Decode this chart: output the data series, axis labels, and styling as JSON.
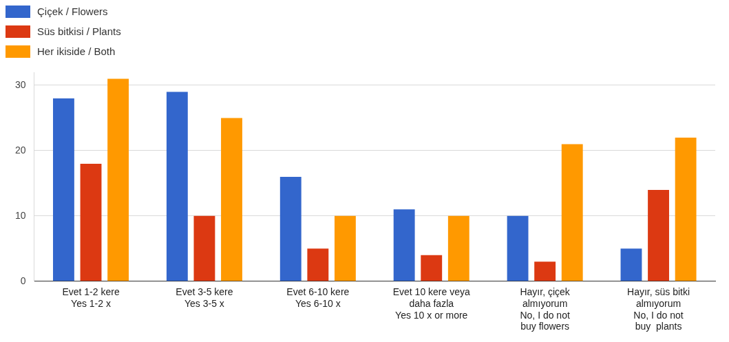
{
  "chart_data": {
    "type": "bar",
    "categories": [
      "Evet 1-2 kere\nYes 1-2 x",
      "Evet 3-5 kere\nYes 3-5 x",
      "Evet 6-10 kere\nYes 6-10 x",
      "Evet 10 kere veya\ndaha fazla\nYes 10 x or more",
      "Hayır, çiçek\nalmıyorum\nNo, I do not\nbuy flowers",
      "Hayır, süs bitki\nalmıyorum\nNo, I do not\nbuy  plants"
    ],
    "series": [
      {
        "name": "Çiçek / Flowers",
        "color": "#3366cc",
        "values": [
          28,
          29,
          16,
          11,
          10,
          5
        ]
      },
      {
        "name": "Süs bitkisi / Plants",
        "color": "#dc3912",
        "values": [
          18,
          10,
          5,
          4,
          3,
          14
        ]
      },
      {
        "name": "Her ikiside / Both",
        "color": "#ff9900",
        "values": [
          31,
          25,
          10,
          10,
          21,
          22
        ]
      }
    ],
    "ylim": [
      0,
      32
    ],
    "yticks": [
      0,
      10,
      20,
      30
    ],
    "grid": "y",
    "legend": "top left"
  }
}
